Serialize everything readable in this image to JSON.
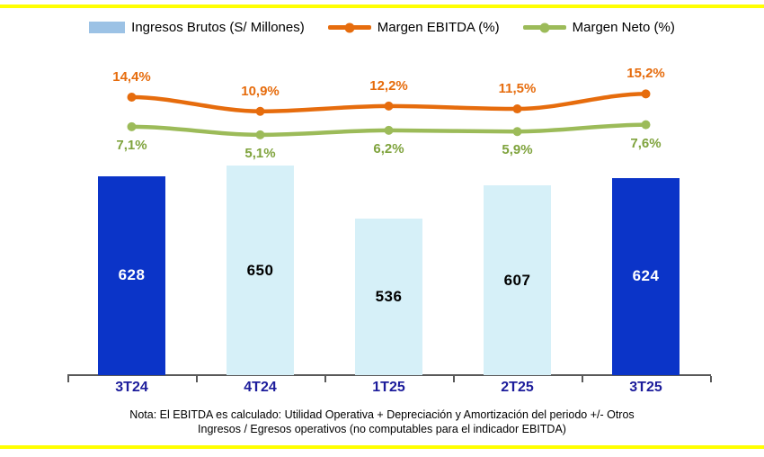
{
  "chart_data": {
    "type": "bar",
    "subtype": "combo-bar-line",
    "categories": [
      "3T24",
      "4T24",
      "1T25",
      "2T25",
      "3T25"
    ],
    "series": [
      {
        "name": "Ingresos Brutos (S/ Millones)",
        "type": "bar",
        "values": [
          628,
          650,
          536,
          607,
          624
        ],
        "value_labels": [
          "628",
          "650",
          "536",
          "607",
          "624"
        ],
        "bar_colors": [
          "#0B34C8",
          "#D6F0F8",
          "#D6F0F8",
          "#D6F0F8",
          "#0B34C8"
        ],
        "label_colors": [
          "#FFFFFF",
          "#000000",
          "#000000",
          "#000000",
          "#FFFFFF"
        ]
      },
      {
        "name": "Margen EBITDA (%)",
        "type": "line",
        "values": [
          14.4,
          10.9,
          12.2,
          11.5,
          15.2
        ],
        "value_labels": [
          "14,4%",
          "10,9%",
          "12,2%",
          "11,5%",
          "15,2%"
        ],
        "color": "#E66C0D"
      },
      {
        "name": "Margen Neto (%)",
        "type": "line",
        "values": [
          7.1,
          5.1,
          6.2,
          5.9,
          7.6
        ],
        "value_labels": [
          "7,1%",
          "5,1%",
          "6,2%",
          "5,9%",
          "7,6%"
        ],
        "color": "#9CBB59"
      }
    ],
    "title": "",
    "xlabel": "",
    "ylabel": "",
    "legend_position": "top",
    "grid": false,
    "bar_axis_hint": {
      "baseline_value": 200
    },
    "line_axis_hint": {
      "unit": "percent"
    }
  },
  "note": {
    "line1": "Nota: El EBITDA es calculado: Utilidad Operativa  + Depreciación y Amortización del periodo +/- Otros",
    "line2": "Ingresos / Egresos operativos (no computables  para el indicador EBITDA)"
  },
  "colors": {
    "yellow_rule": "#FFFF00",
    "bar_dark": "#0B34C8",
    "bar_light": "#D6F0F8",
    "legend_swatch": "#9CC2E5",
    "ebitda_orange": "#E66C0D",
    "neto_green_line": "#9CBB59",
    "neto_green_text": "#7FA33D",
    "axis_label_navy": "#1C1C9B",
    "axis_line_gray": "#595959"
  }
}
